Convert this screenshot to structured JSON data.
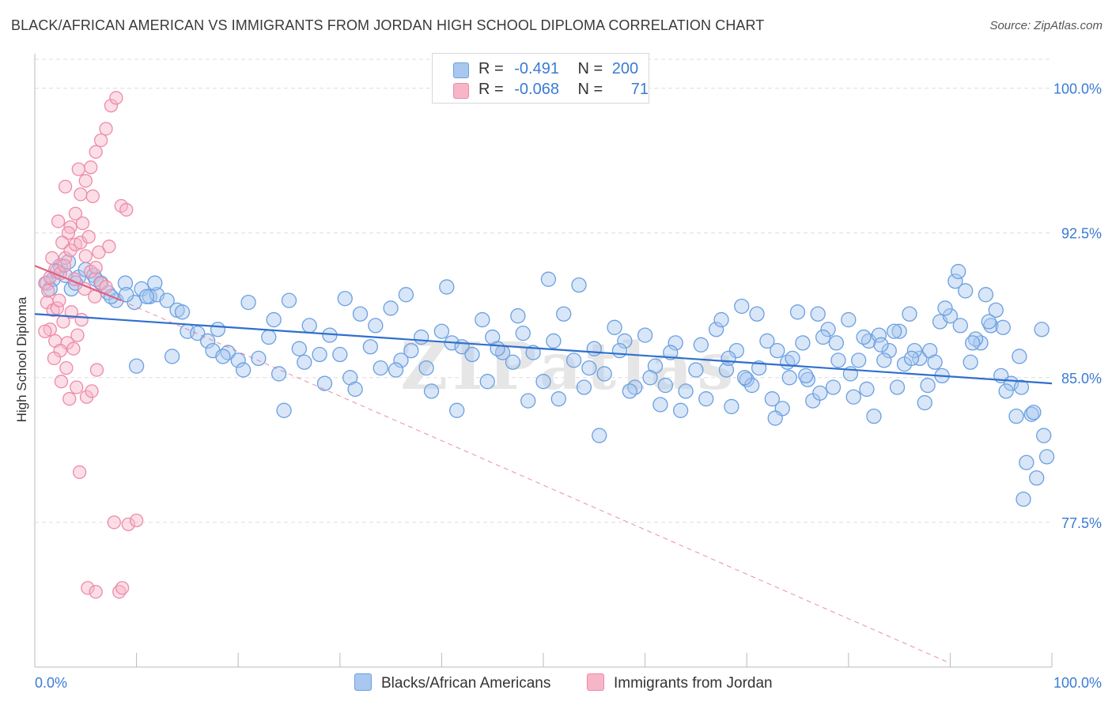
{
  "title": "BLACK/AFRICAN AMERICAN VS IMMIGRANTS FROM JORDAN HIGH SCHOOL DIPLOMA CORRELATION CHART",
  "source": "Source: ZipAtlas.com",
  "watermark": "ZIPatlas",
  "legend": {
    "rows": [
      {
        "r_label": "R =",
        "r_value": "-0.491",
        "n_label": "N =",
        "n_value": "200",
        "color": "#a8c8f0"
      },
      {
        "r_label": "R =",
        "r_value": "-0.068",
        "n_label": "N =",
        "n_value": "71",
        "color": "#f7b6c8"
      }
    ]
  },
  "bottom_legend": [
    {
      "label": "Blacks/African Americans",
      "color": "#a8c8f0"
    },
    {
      "label": "Immigrants from Jordan",
      "color": "#f7b6c8"
    }
  ],
  "chart_data": {
    "type": "scatter",
    "xlabel": "",
    "ylabel": "High School Diploma",
    "xlim": [
      0,
      100
    ],
    "ylim": [
      70,
      101.5
    ],
    "x_tick_labels": [
      "0.0%",
      "100.0%"
    ],
    "y_ticks": [
      77.5,
      85.0,
      92.5,
      100.0
    ],
    "y_tick_labels": [
      "77.5%",
      "85.0%",
      "92.5%",
      "100.0%"
    ],
    "grid": true,
    "legend_position": "top-center",
    "colors": {
      "blue": "#6aa0e0",
      "blue_fill": "#a8c8f0",
      "pink": "#ee8aaa",
      "pink_fill": "#f7b6c8",
      "blue_line": "#2f6fcf",
      "pink_line": "#e0607f",
      "axis_text": "#3a7bd5"
    },
    "series": [
      {
        "name": "Blacks/African Americans",
        "trend": {
          "x0": 0,
          "y0": 88.3,
          "x1": 100,
          "y1": 84.7
        },
        "points": [
          [
            1.2,
            89.9
          ],
          [
            1.8,
            90.1
          ],
          [
            2.5,
            90.8
          ],
          [
            3.0,
            90.3
          ],
          [
            3.6,
            89.6
          ],
          [
            4.3,
            90.2
          ],
          [
            5.0,
            90.6
          ],
          [
            5.8,
            90.3
          ],
          [
            6.5,
            89.9
          ],
          [
            7.2,
            89.4
          ],
          [
            8.0,
            89.0
          ],
          [
            8.9,
            89.9
          ],
          [
            9.8,
            88.9
          ],
          [
            10.5,
            89.6
          ],
          [
            11.3,
            89.2
          ],
          [
            12.0,
            89.3
          ],
          [
            1.5,
            89.6
          ],
          [
            2.2,
            90.5
          ],
          [
            3.3,
            91.0
          ],
          [
            4.0,
            89.9
          ],
          [
            6.0,
            90.1
          ],
          [
            7.5,
            89.2
          ],
          [
            9.0,
            89.3
          ],
          [
            11.0,
            89.2
          ],
          [
            11.8,
            89.9
          ],
          [
            13.0,
            89.0
          ],
          [
            14.0,
            88.5
          ],
          [
            15.0,
            87.4
          ],
          [
            16.0,
            87.3
          ],
          [
            17.0,
            86.9
          ],
          [
            18.0,
            87.5
          ],
          [
            19.0,
            86.3
          ],
          [
            20.0,
            85.9
          ],
          [
            21.0,
            88.9
          ],
          [
            22.0,
            86.0
          ],
          [
            23.0,
            87.1
          ],
          [
            24.0,
            85.2
          ],
          [
            25.0,
            89.0
          ],
          [
            26.0,
            86.5
          ],
          [
            27.0,
            87.7
          ],
          [
            28.0,
            86.2
          ],
          [
            29.0,
            87.2
          ],
          [
            30.0,
            86.2
          ],
          [
            31.0,
            85.0
          ],
          [
            32.0,
            88.3
          ],
          [
            33.0,
            86.6
          ],
          [
            34.0,
            85.5
          ],
          [
            35.0,
            88.6
          ],
          [
            36.0,
            85.9
          ],
          [
            37.0,
            86.4
          ],
          [
            38.0,
            87.1
          ],
          [
            39.0,
            84.3
          ],
          [
            40.0,
            87.4
          ],
          [
            41.0,
            86.8
          ],
          [
            42.0,
            86.6
          ],
          [
            43.0,
            86.2
          ],
          [
            44.0,
            88.0
          ],
          [
            45.0,
            87.1
          ],
          [
            46.0,
            86.3
          ],
          [
            47.0,
            85.8
          ],
          [
            48.0,
            87.3
          ],
          [
            49.0,
            86.3
          ],
          [
            50.0,
            84.8
          ],
          [
            51.0,
            86.9
          ],
          [
            52.0,
            88.3
          ],
          [
            53.0,
            85.9
          ],
          [
            54.0,
            84.5
          ],
          [
            55.0,
            86.5
          ],
          [
            56.0,
            85.2
          ],
          [
            57.0,
            87.6
          ],
          [
            58.0,
            86.9
          ],
          [
            59.0,
            84.5
          ],
          [
            60.0,
            87.2
          ],
          [
            61.0,
            85.6
          ],
          [
            62.0,
            84.6
          ],
          [
            63.0,
            86.8
          ],
          [
            64.0,
            84.3
          ],
          [
            65.0,
            85.4
          ],
          [
            66.0,
            83.9
          ],
          [
            67.0,
            87.5
          ],
          [
            68.0,
            85.4
          ],
          [
            69.0,
            86.4
          ],
          [
            70.0,
            84.9
          ],
          [
            71.0,
            88.3
          ],
          [
            72.0,
            86.9
          ],
          [
            73.0,
            86.4
          ],
          [
            74.0,
            85.8
          ],
          [
            75.0,
            88.4
          ],
          [
            76.0,
            84.9
          ],
          [
            77.0,
            88.3
          ],
          [
            78.0,
            87.5
          ],
          [
            79.0,
            85.9
          ],
          [
            80.0,
            88.0
          ],
          [
            81.0,
            85.9
          ],
          [
            82.0,
            86.9
          ],
          [
            83.0,
            87.2
          ],
          [
            84.0,
            86.4
          ],
          [
            85.0,
            87.4
          ],
          [
            86.0,
            88.3
          ],
          [
            87.0,
            86.0
          ],
          [
            88.0,
            86.4
          ],
          [
            89.0,
            87.9
          ],
          [
            90.0,
            88.2
          ],
          [
            91.0,
            87.7
          ],
          [
            92.0,
            85.8
          ],
          [
            93.0,
            86.8
          ],
          [
            94.0,
            87.7
          ],
          [
            95.0,
            85.1
          ],
          [
            96.0,
            84.7
          ],
          [
            97.0,
            84.5
          ],
          [
            98.0,
            83.1
          ],
          [
            99.0,
            87.5
          ],
          [
            10.0,
            85.6
          ],
          [
            13.5,
            86.1
          ],
          [
            14.5,
            88.4
          ],
          [
            17.5,
            86.4
          ],
          [
            18.5,
            86.1
          ],
          [
            20.5,
            85.4
          ],
          [
            23.5,
            88.0
          ],
          [
            24.5,
            83.3
          ],
          [
            26.5,
            85.8
          ],
          [
            28.5,
            84.7
          ],
          [
            30.5,
            89.1
          ],
          [
            31.5,
            84.4
          ],
          [
            33.5,
            87.7
          ],
          [
            35.5,
            85.4
          ],
          [
            36.5,
            89.3
          ],
          [
            38.5,
            85.5
          ],
          [
            40.5,
            89.7
          ],
          [
            41.5,
            83.3
          ],
          [
            44.5,
            84.8
          ],
          [
            45.5,
            86.5
          ],
          [
            47.5,
            88.2
          ],
          [
            48.5,
            83.8
          ],
          [
            50.5,
            90.1
          ],
          [
            51.5,
            83.9
          ],
          [
            53.5,
            89.8
          ],
          [
            54.5,
            85.5
          ],
          [
            55.5,
            82.0
          ],
          [
            57.5,
            86.4
          ],
          [
            58.5,
            84.3
          ],
          [
            60.5,
            85.0
          ],
          [
            61.5,
            83.6
          ],
          [
            62.5,
            86.3
          ],
          [
            63.5,
            83.3
          ],
          [
            65.5,
            86.7
          ],
          [
            67.5,
            88.0
          ],
          [
            68.5,
            83.5
          ],
          [
            69.5,
            88.7
          ],
          [
            70.5,
            84.6
          ],
          [
            72.5,
            83.9
          ],
          [
            73.5,
            83.4
          ],
          [
            74.5,
            86.0
          ],
          [
            75.5,
            86.8
          ],
          [
            76.5,
            83.8
          ],
          [
            77.5,
            87.1
          ],
          [
            78.5,
            84.5
          ],
          [
            80.5,
            84.0
          ],
          [
            81.5,
            87.1
          ],
          [
            82.5,
            83.0
          ],
          [
            83.5,
            85.9
          ],
          [
            84.5,
            87.4
          ],
          [
            85.5,
            85.7
          ],
          [
            86.5,
            86.4
          ],
          [
            87.5,
            83.7
          ],
          [
            88.5,
            85.8
          ],
          [
            89.5,
            88.6
          ],
          [
            90.5,
            90.0
          ],
          [
            91.5,
            89.5
          ],
          [
            92.5,
            87.0
          ],
          [
            93.5,
            89.3
          ],
          [
            94.5,
            88.5
          ],
          [
            95.5,
            84.3
          ],
          [
            96.5,
            83.0
          ],
          [
            97.5,
            80.6
          ],
          [
            98.5,
            79.8
          ],
          [
            99.5,
            80.9
          ],
          [
            97.2,
            78.7
          ],
          [
            98.2,
            83.2
          ],
          [
            99.2,
            82.0
          ],
          [
            96.8,
            86.1
          ],
          [
            95.2,
            87.6
          ],
          [
            93.8,
            87.9
          ],
          [
            92.2,
            86.8
          ],
          [
            90.8,
            90.5
          ],
          [
            89.2,
            85.1
          ],
          [
            87.8,
            84.6
          ],
          [
            86.2,
            86.0
          ],
          [
            84.8,
            84.5
          ],
          [
            83.2,
            86.7
          ],
          [
            81.8,
            84.4
          ],
          [
            80.2,
            85.2
          ],
          [
            78.8,
            86.8
          ],
          [
            77.2,
            84.2
          ],
          [
            75.8,
            85.1
          ],
          [
            74.2,
            85.0
          ],
          [
            72.8,
            82.9
          ],
          [
            71.2,
            85.5
          ],
          [
            69.8,
            85.0
          ],
          [
            68.2,
            86.0
          ]
        ]
      },
      {
        "name": "Immigrants from Jordan",
        "trend_solid": {
          "x0": 0,
          "y0": 90.8,
          "x1": 8.5,
          "y1": 89.0
        },
        "trend_dashed": {
          "x0": 8.5,
          "y0": 89.0,
          "x1": 90,
          "y1": 70.2
        },
        "points": [
          [
            1.0,
            89.9
          ],
          [
            1.5,
            90.2
          ],
          [
            2.0,
            90.6
          ],
          [
            2.5,
            90.4
          ],
          [
            3.0,
            91.2
          ],
          [
            3.5,
            91.6
          ],
          [
            4.0,
            91.9
          ],
          [
            4.5,
            92.0
          ],
          [
            5.0,
            91.3
          ],
          [
            5.5,
            90.5
          ],
          [
            6.0,
            90.7
          ],
          [
            6.5,
            89.9
          ],
          [
            7.0,
            89.7
          ],
          [
            1.2,
            88.9
          ],
          [
            1.8,
            88.5
          ],
          [
            2.2,
            88.6
          ],
          [
            2.8,
            87.9
          ],
          [
            3.2,
            86.8
          ],
          [
            3.8,
            86.5
          ],
          [
            4.2,
            87.2
          ],
          [
            1.5,
            87.5
          ],
          [
            2.0,
            86.9
          ],
          [
            2.5,
            86.4
          ],
          [
            1.0,
            87.4
          ],
          [
            3.5,
            92.8
          ],
          [
            4.0,
            93.5
          ],
          [
            4.5,
            94.5
          ],
          [
            5.0,
            95.2
          ],
          [
            5.5,
            95.9
          ],
          [
            6.0,
            96.7
          ],
          [
            6.5,
            97.3
          ],
          [
            7.0,
            97.9
          ],
          [
            7.5,
            99.1
          ],
          [
            8.0,
            99.5
          ],
          [
            8.5,
            93.9
          ],
          [
            9.0,
            93.7
          ],
          [
            3.0,
            94.9
          ],
          [
            4.3,
            95.8
          ],
          [
            5.7,
            94.4
          ],
          [
            2.3,
            93.1
          ],
          [
            3.3,
            92.5
          ],
          [
            2.7,
            92.0
          ],
          [
            4.7,
            93.0
          ],
          [
            5.3,
            92.3
          ],
          [
            6.3,
            91.5
          ],
          [
            7.3,
            91.8
          ],
          [
            1.7,
            91.2
          ],
          [
            2.9,
            90.8
          ],
          [
            3.9,
            90.1
          ],
          [
            4.9,
            89.6
          ],
          [
            5.9,
            89.2
          ],
          [
            1.3,
            89.5
          ],
          [
            2.4,
            89.0
          ],
          [
            3.6,
            88.4
          ],
          [
            4.6,
            88.0
          ],
          [
            1.9,
            86.0
          ],
          [
            3.1,
            85.5
          ],
          [
            4.1,
            84.5
          ],
          [
            5.1,
            84.0
          ],
          [
            5.6,
            84.3
          ],
          [
            6.1,
            85.4
          ],
          [
            2.6,
            84.8
          ],
          [
            3.4,
            83.9
          ],
          [
            4.4,
            80.1
          ],
          [
            7.8,
            77.5
          ],
          [
            5.2,
            74.1
          ],
          [
            6.0,
            73.9
          ],
          [
            8.3,
            73.9
          ],
          [
            8.6,
            74.1
          ],
          [
            9.2,
            77.4
          ],
          [
            10.0,
            77.6
          ]
        ]
      }
    ]
  }
}
